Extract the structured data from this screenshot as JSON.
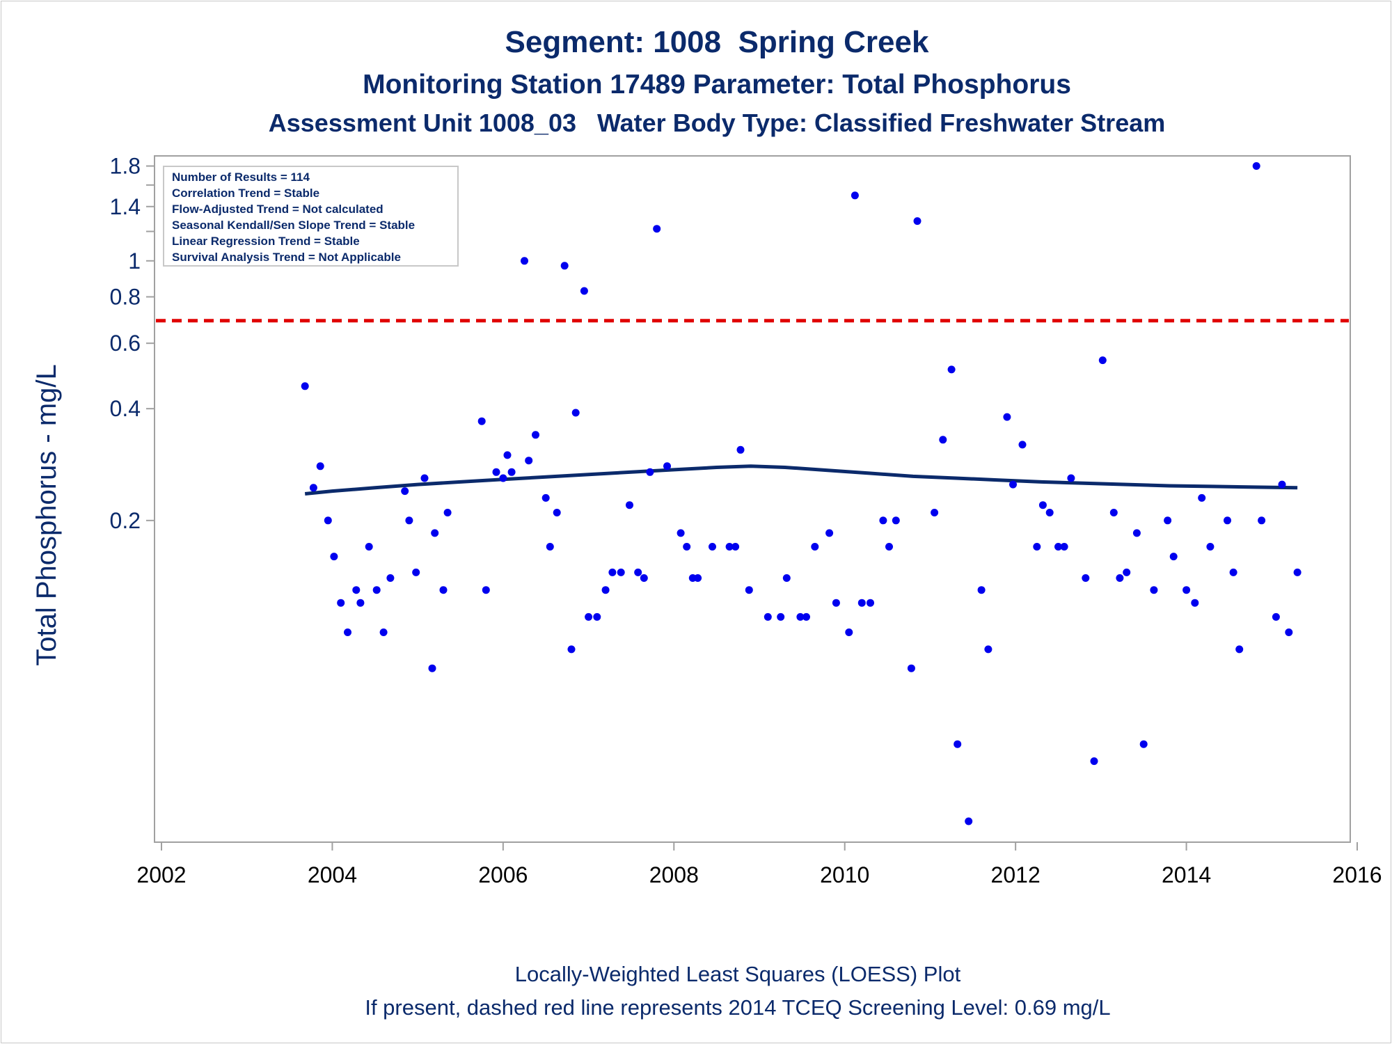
{
  "titles": {
    "line1": "Segment: 1008  Spring Creek",
    "line2": "Monitoring Station 17489 Parameter: Total Phosphorus",
    "line3": "Assessment Unit 1008_03   Water Body Type: Classified Freshwater Stream"
  },
  "footnotes": {
    "line1": "Locally-Weighted Least Squares (LOESS) Plot",
    "line2": "If present, dashed red line represents 2014 TCEQ Screening Level: 0.69 mg/L"
  },
  "stats_box": [
    "Number of Results = 114",
    "Correlation Trend = Stable",
    "Flow-Adjusted Trend = Not calculated",
    "Seasonal Kendall/Sen Slope Trend = Stable",
    "Linear Regression Trend = Stable",
    "Survival Analysis Trend = Not Applicable"
  ],
  "colors": {
    "points": "#0000ee",
    "loess": "#0b2a6b",
    "screening_line": "#e00000",
    "text": "#0b2a6b"
  },
  "chart_data": {
    "type": "scatter",
    "ylabel": "Total Phosphorus - mg/L",
    "xlabel": "",
    "y_scale": "log",
    "xlim": [
      2002,
      2016
    ],
    "ylim": [
      0.027,
      1.9
    ],
    "x_ticks": [
      2002,
      2004,
      2006,
      2008,
      2010,
      2012,
      2014,
      2016
    ],
    "y_ticks": [
      {
        "value": 0.2,
        "label": "0.2"
      },
      {
        "value": 0.4,
        "label": "0.4"
      },
      {
        "value": 0.6,
        "label": "0.6"
      },
      {
        "value": 0.8,
        "label": "0.8"
      },
      {
        "value": 1.0,
        "label": "1"
      },
      {
        "value": 1.4,
        "label": "1.4"
      },
      {
        "value": 1.8,
        "label": "1.8"
      }
    ],
    "y_minor_ticks": [
      1.2,
      1.6
    ],
    "screening_level": 0.69,
    "grid": false,
    "legend": "top-left",
    "points": [
      [
        2003.68,
        0.46
      ],
      [
        2003.78,
        0.245
      ],
      [
        2003.86,
        0.28
      ],
      [
        2003.95,
        0.2
      ],
      [
        2004.02,
        0.16
      ],
      [
        2004.1,
        0.12
      ],
      [
        2004.18,
        0.1
      ],
      [
        2004.28,
        0.13
      ],
      [
        2004.33,
        0.12
      ],
      [
        2004.43,
        0.17
      ],
      [
        2004.52,
        0.13
      ],
      [
        2004.6,
        0.1
      ],
      [
        2004.68,
        0.14
      ],
      [
        2004.85,
        0.24
      ],
      [
        2004.9,
        0.2
      ],
      [
        2004.98,
        0.145
      ],
      [
        2005.08,
        0.26
      ],
      [
        2005.17,
        0.08
      ],
      [
        2005.2,
        0.185
      ],
      [
        2005.3,
        0.13
      ],
      [
        2005.35,
        0.21
      ],
      [
        2005.75,
        0.37
      ],
      [
        2005.8,
        0.13
      ],
      [
        2005.92,
        0.27
      ],
      [
        2006.0,
        0.26
      ],
      [
        2006.05,
        0.3
      ],
      [
        2006.1,
        0.27
      ],
      [
        2006.25,
        1.0
      ],
      [
        2006.3,
        0.29
      ],
      [
        2006.38,
        0.34
      ],
      [
        2006.5,
        0.23
      ],
      [
        2006.55,
        0.17
      ],
      [
        2006.63,
        0.21
      ],
      [
        2006.72,
        0.97
      ],
      [
        2006.8,
        0.09
      ],
      [
        2006.85,
        0.39
      ],
      [
        2006.95,
        0.83
      ],
      [
        2007.0,
        0.11
      ],
      [
        2007.1,
        0.11
      ],
      [
        2007.2,
        0.13
      ],
      [
        2007.28,
        0.145
      ],
      [
        2007.38,
        0.145
      ],
      [
        2007.48,
        0.22
      ],
      [
        2007.58,
        0.145
      ],
      [
        2007.65,
        0.14
      ],
      [
        2007.72,
        0.27
      ],
      [
        2007.8,
        1.22
      ],
      [
        2007.92,
        0.28
      ],
      [
        2008.08,
        0.185
      ],
      [
        2008.15,
        0.17
      ],
      [
        2008.22,
        0.14
      ],
      [
        2008.28,
        0.14
      ],
      [
        2008.45,
        0.17
      ],
      [
        2008.65,
        0.17
      ],
      [
        2008.72,
        0.17
      ],
      [
        2008.78,
        0.31
      ],
      [
        2008.88,
        0.13
      ],
      [
        2009.1,
        0.11
      ],
      [
        2009.25,
        0.11
      ],
      [
        2009.32,
        0.14
      ],
      [
        2009.48,
        0.11
      ],
      [
        2009.55,
        0.11
      ],
      [
        2009.65,
        0.17
      ],
      [
        2009.82,
        0.185
      ],
      [
        2009.9,
        0.12
      ],
      [
        2010.05,
        0.1
      ],
      [
        2010.12,
        1.5
      ],
      [
        2010.2,
        0.12
      ],
      [
        2010.3,
        0.12
      ],
      [
        2010.45,
        0.2
      ],
      [
        2010.52,
        0.17
      ],
      [
        2010.6,
        0.2
      ],
      [
        2010.78,
        0.08
      ],
      [
        2010.85,
        1.28
      ],
      [
        2011.05,
        0.21
      ],
      [
        2011.15,
        0.33
      ],
      [
        2011.25,
        0.51
      ],
      [
        2011.32,
        0.05
      ],
      [
        2011.45,
        0.031
      ],
      [
        2011.6,
        0.13
      ],
      [
        2011.68,
        0.09
      ],
      [
        2011.9,
        0.38
      ],
      [
        2011.97,
        0.25
      ],
      [
        2012.08,
        0.32
      ],
      [
        2012.25,
        0.17
      ],
      [
        2012.32,
        0.22
      ],
      [
        2012.4,
        0.21
      ],
      [
        2012.5,
        0.17
      ],
      [
        2012.57,
        0.17
      ],
      [
        2012.65,
        0.26
      ],
      [
        2012.82,
        0.14
      ],
      [
        2012.92,
        0.045
      ],
      [
        2013.02,
        0.54
      ],
      [
        2013.15,
        0.21
      ],
      [
        2013.22,
        0.14
      ],
      [
        2013.3,
        0.145
      ],
      [
        2013.42,
        0.185
      ],
      [
        2013.5,
        0.05
      ],
      [
        2013.62,
        0.13
      ],
      [
        2013.78,
        0.2
      ],
      [
        2013.85,
        0.16
      ],
      [
        2014.0,
        0.13
      ],
      [
        2014.1,
        0.12
      ],
      [
        2014.18,
        0.23
      ],
      [
        2014.28,
        0.17
      ],
      [
        2014.48,
        0.2
      ],
      [
        2014.55,
        0.145
      ],
      [
        2014.62,
        0.09
      ],
      [
        2014.82,
        1.8
      ],
      [
        2014.88,
        0.2
      ],
      [
        2015.05,
        0.11
      ],
      [
        2015.12,
        0.25
      ],
      [
        2015.2,
        0.1
      ],
      [
        2015.3,
        0.145
      ]
    ],
    "loess": [
      [
        2003.68,
        0.236
      ],
      [
        2004.0,
        0.24
      ],
      [
        2004.5,
        0.245
      ],
      [
        2005.0,
        0.25
      ],
      [
        2005.5,
        0.254
      ],
      [
        2006.0,
        0.258
      ],
      [
        2006.5,
        0.262
      ],
      [
        2007.0,
        0.266
      ],
      [
        2007.5,
        0.27
      ],
      [
        2008.0,
        0.274
      ],
      [
        2008.5,
        0.278
      ],
      [
        2008.9,
        0.28
      ],
      [
        2009.3,
        0.278
      ],
      [
        2009.8,
        0.273
      ],
      [
        2010.3,
        0.268
      ],
      [
        2010.8,
        0.263
      ],
      [
        2011.3,
        0.26
      ],
      [
        2011.8,
        0.257
      ],
      [
        2012.3,
        0.254
      ],
      [
        2012.8,
        0.252
      ],
      [
        2013.3,
        0.25
      ],
      [
        2013.8,
        0.248
      ],
      [
        2014.3,
        0.247
      ],
      [
        2014.8,
        0.246
      ],
      [
        2015.3,
        0.245
      ]
    ]
  }
}
